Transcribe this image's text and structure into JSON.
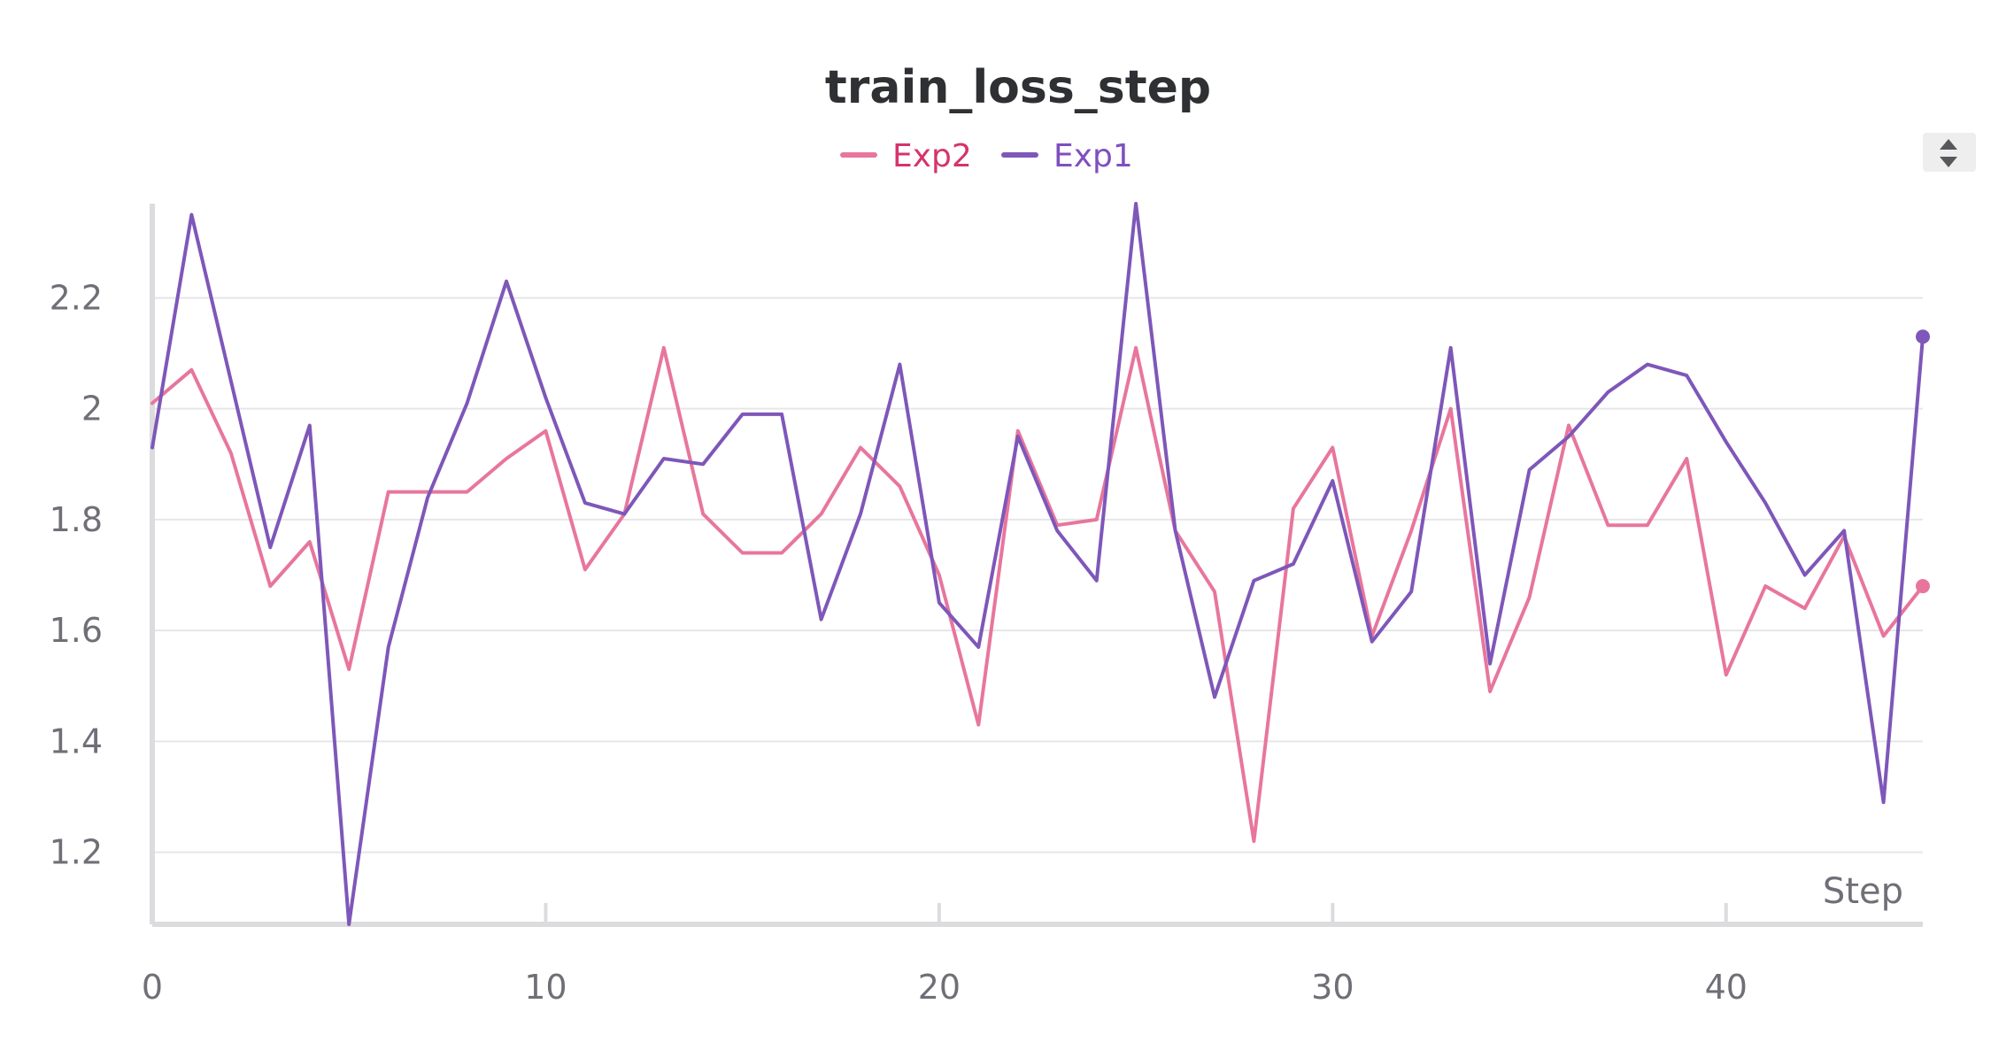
{
  "chart_data": {
    "type": "line",
    "title": "train_loss_step",
    "xlabel": "Step",
    "ylabel": "",
    "xlim": [
      0,
      45
    ],
    "ylim": [
      1.07,
      2.37
    ],
    "x_ticks": [
      0,
      10,
      20,
      30,
      40
    ],
    "y_ticks": [
      1.2,
      1.4,
      1.6,
      1.8,
      2.0,
      2.2
    ],
    "y_tick_labels": [
      "1.2",
      "1.4",
      "1.6",
      "1.8",
      "2",
      "2.2"
    ],
    "grid": "horizontal",
    "legend_position": "top-center",
    "x": [
      0,
      1,
      2,
      3,
      4,
      5,
      6,
      7,
      8,
      9,
      10,
      11,
      12,
      13,
      14,
      15,
      16,
      17,
      18,
      19,
      20,
      21,
      22,
      23,
      24,
      25,
      26,
      27,
      28,
      29,
      30,
      31,
      32,
      33,
      34,
      35,
      36,
      37,
      38,
      39,
      40,
      41,
      42,
      43,
      44,
      45
    ],
    "series": [
      {
        "name": "Exp2",
        "color": "#e8769c",
        "label_color": "#d6336c",
        "values": [
          2.01,
          2.07,
          1.92,
          1.68,
          1.76,
          1.53,
          1.85,
          1.85,
          1.85,
          1.91,
          1.96,
          1.71,
          1.81,
          2.11,
          1.81,
          1.74,
          1.74,
          1.81,
          1.93,
          1.86,
          1.7,
          1.43,
          1.96,
          1.79,
          1.8,
          2.11,
          1.78,
          1.67,
          1.22,
          1.82,
          1.93,
          1.59,
          1.78,
          2.0,
          1.49,
          1.66,
          1.97,
          1.79,
          1.79,
          1.91,
          1.52,
          1.68,
          1.64,
          1.77,
          1.59,
          1.68
        ]
      },
      {
        "name": "Exp1",
        "color": "#7e57b9",
        "label_color": "#7e4fbf",
        "values": [
          1.93,
          2.35,
          2.05,
          1.75,
          1.97,
          1.07,
          1.57,
          1.84,
          2.01,
          2.23,
          2.02,
          1.83,
          1.81,
          1.91,
          1.9,
          1.99,
          1.99,
          1.62,
          1.81,
          2.08,
          1.65,
          1.57,
          1.95,
          1.78,
          1.69,
          2.37,
          1.78,
          1.48,
          1.69,
          1.72,
          1.87,
          1.58,
          1.67,
          2.11,
          1.54,
          1.89,
          1.95,
          2.03,
          2.08,
          2.06,
          1.94,
          1.83,
          1.7,
          1.78,
          1.29,
          2.13
        ]
      }
    ]
  },
  "colors": {
    "grid": "#e6e6e9",
    "axis": "#dcdcdf",
    "scroll_control_bg": "#eeeeef",
    "scroll_control_arrow": "#57575c"
  }
}
